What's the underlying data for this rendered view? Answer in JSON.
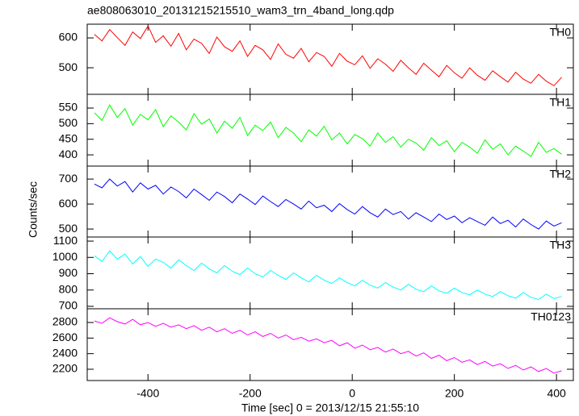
{
  "chart_data": [
    {
      "type": "line",
      "title": "ae808063010_20131215215510_wam3_trn_4band_long.qdp",
      "x": [
        -505,
        -490,
        -475,
        -460,
        -445,
        -430,
        -415,
        -400,
        -385,
        -370,
        -355,
        -340,
        -325,
        -310,
        -295,
        -280,
        -265,
        -250,
        -235,
        -220,
        -205,
        -190,
        -175,
        -160,
        -145,
        -130,
        -115,
        -100,
        -85,
        -70,
        -55,
        -40,
        -25,
        -10,
        5,
        20,
        35,
        50,
        65,
        80,
        95,
        110,
        125,
        140,
        155,
        170,
        185,
        200,
        215,
        230,
        245,
        260,
        275,
        290,
        305,
        320,
        335,
        350,
        365,
        380,
        395,
        410
      ],
      "series": [
        {
          "name": "TH0",
          "color": "#ff0000",
          "values": [
            612,
            590,
            628,
            601,
            575,
            620,
            598,
            640,
            585,
            607,
            572,
            615,
            560,
            596,
            582,
            548,
            603,
            570,
            555,
            590,
            538,
            575,
            560,
            528,
            580,
            545,
            532,
            565,
            520,
            551,
            538,
            505,
            548,
            522,
            510,
            540,
            498,
            530,
            512,
            488,
            525,
            500,
            478,
            515,
            492,
            470,
            508,
            483,
            465,
            500,
            475,
            458,
            490,
            470,
            452,
            485,
            462,
            448,
            478,
            455,
            440,
            468
          ]
        }
      ],
      "xlim": [
        -519,
        433
      ],
      "xticks": [
        -400,
        -200,
        0,
        200,
        400
      ],
      "ylim": [
        411,
        646
      ],
      "yticks": [
        500,
        600
      ]
    },
    {
      "type": "line",
      "x": [
        -505,
        -490,
        -475,
        -460,
        -445,
        -430,
        -415,
        -400,
        -385,
        -370,
        -355,
        -340,
        -325,
        -310,
        -295,
        -280,
        -265,
        -250,
        -235,
        -220,
        -205,
        -190,
        -175,
        -160,
        -145,
        -130,
        -115,
        -100,
        -85,
        -70,
        -55,
        -40,
        -25,
        -10,
        5,
        20,
        35,
        50,
        65,
        80,
        95,
        110,
        125,
        140,
        155,
        170,
        185,
        200,
        215,
        230,
        245,
        260,
        275,
        290,
        305,
        320,
        335,
        350,
        365,
        380,
        395,
        410
      ],
      "series": [
        {
          "name": "TH1",
          "color": "#00ff00",
          "values": [
            535,
            510,
            560,
            520,
            548,
            495,
            530,
            512,
            545,
            490,
            525,
            505,
            480,
            532,
            498,
            515,
            470,
            508,
            485,
            520,
            462,
            495,
            478,
            505,
            455,
            488,
            470,
            442,
            480,
            460,
            492,
            448,
            470,
            435,
            465,
            452,
            428,
            470,
            440,
            458,
            425,
            450,
            438,
            415,
            455,
            430,
            445,
            410,
            440,
            425,
            405,
            448,
            418,
            435,
            400,
            428,
            412,
            395,
            440,
            408,
            420,
            402
          ]
        }
      ],
      "xlim": [
        -519,
        433
      ],
      "xticks": [
        -400,
        -200,
        0,
        200,
        400
      ],
      "ylim": [
        364,
        594
      ],
      "yticks": [
        400,
        450,
        500,
        550
      ]
    },
    {
      "type": "line",
      "ylabel": "Counts/sec",
      "x": [
        -505,
        -490,
        -475,
        -460,
        -445,
        -430,
        -415,
        -400,
        -385,
        -370,
        -355,
        -340,
        -325,
        -310,
        -295,
        -280,
        -265,
        -250,
        -235,
        -220,
        -205,
        -190,
        -175,
        -160,
        -145,
        -130,
        -115,
        -100,
        -85,
        -70,
        -55,
        -40,
        -25,
        -10,
        5,
        20,
        35,
        50,
        65,
        80,
        95,
        110,
        125,
        140,
        155,
        170,
        185,
        200,
        215,
        230,
        245,
        260,
        275,
        290,
        305,
        320,
        335,
        350,
        365,
        380,
        395,
        410
      ],
      "series": [
        {
          "name": "TH2",
          "color": "#0000ff",
          "values": [
            680,
            665,
            700,
            672,
            690,
            648,
            685,
            660,
            675,
            640,
            668,
            650,
            625,
            660,
            638,
            615,
            648,
            630,
            605,
            640,
            620,
            598,
            632,
            610,
            590,
            618,
            600,
            580,
            612,
            585,
            595,
            570,
            602,
            578,
            560,
            590,
            565,
            548,
            580,
            558,
            570,
            540,
            565,
            548,
            530,
            560,
            538,
            552,
            525,
            545,
            530,
            515,
            548,
            522,
            535,
            508,
            540,
            518,
            500,
            532,
            512,
            525
          ]
        }
      ],
      "xlim": [
        -519,
        433
      ],
      "xticks": [
        -400,
        -200,
        0,
        200,
        400
      ],
      "ylim": [
        468,
        752
      ],
      "yticks": [
        500,
        600,
        700
      ]
    },
    {
      "type": "line",
      "x": [
        -505,
        -490,
        -475,
        -460,
        -445,
        -430,
        -415,
        -400,
        -385,
        -370,
        -355,
        -340,
        -325,
        -310,
        -295,
        -280,
        -265,
        -250,
        -235,
        -220,
        -205,
        -190,
        -175,
        -160,
        -145,
        -130,
        -115,
        -100,
        -85,
        -70,
        -55,
        -40,
        -25,
        -10,
        5,
        20,
        35,
        50,
        65,
        80,
        95,
        110,
        125,
        140,
        155,
        170,
        185,
        200,
        215,
        230,
        245,
        260,
        275,
        290,
        305,
        320,
        335,
        350,
        365,
        380,
        395,
        410
      ],
      "series": [
        {
          "name": "TH3",
          "color": "#00ffff",
          "values": [
            1010,
            975,
            1040,
            990,
            1020,
            960,
            1005,
            945,
            990,
            970,
            935,
            985,
            950,
            920,
            965,
            930,
            905,
            950,
            915,
            895,
            935,
            900,
            880,
            920,
            890,
            865,
            905,
            875,
            850,
            890,
            860,
            840,
            875,
            845,
            825,
            860,
            830,
            812,
            845,
            818,
            800,
            835,
            805,
            790,
            825,
            795,
            780,
            812,
            785,
            770,
            800,
            775,
            760,
            790,
            765,
            750,
            785,
            755,
            742,
            775,
            748,
            760
          ]
        }
      ],
      "xlim": [
        -519,
        433
      ],
      "xticks": [
        -400,
        -200,
        0,
        200,
        400
      ],
      "ylim": [
        685,
        1125
      ],
      "yticks": [
        700,
        800,
        900,
        1000,
        1100
      ]
    },
    {
      "type": "line",
      "xlabel": "Time [sec] 0 = 2013/12/15 21:55:10",
      "x": [
        -505,
        -490,
        -475,
        -460,
        -445,
        -430,
        -415,
        -400,
        -385,
        -370,
        -355,
        -340,
        -325,
        -310,
        -295,
        -280,
        -265,
        -250,
        -235,
        -220,
        -205,
        -190,
        -175,
        -160,
        -145,
        -130,
        -115,
        -100,
        -85,
        -70,
        -55,
        -40,
        -25,
        -10,
        5,
        20,
        35,
        50,
        65,
        80,
        95,
        110,
        125,
        140,
        155,
        170,
        185,
        200,
        215,
        230,
        245,
        260,
        275,
        290,
        305,
        320,
        335,
        350,
        365,
        380,
        395,
        410
      ],
      "series": [
        {
          "name": "TH0123",
          "color": "#ff00ff",
          "values": [
            2820,
            2790,
            2860,
            2810,
            2780,
            2840,
            2770,
            2800,
            2750,
            2790,
            2740,
            2770,
            2720,
            2760,
            2700,
            2740,
            2680,
            2720,
            2660,
            2700,
            2640,
            2680,
            2620,
            2660,
            2600,
            2640,
            2580,
            2610,
            2560,
            2590,
            2540,
            2570,
            2500,
            2540,
            2470,
            2510,
            2450,
            2480,
            2420,
            2460,
            2400,
            2430,
            2370,
            2410,
            2340,
            2380,
            2310,
            2350,
            2290,
            2320,
            2260,
            2300,
            2240,
            2270,
            2210,
            2250,
            2190,
            2230,
            2170,
            2210,
            2150,
            2180
          ]
        }
      ],
      "xlim": [
        -519,
        433
      ],
      "xticks": [
        -400,
        -200,
        0,
        200,
        400
      ],
      "ylim": [
        2055,
        2976
      ],
      "yticks": [
        2200,
        2400,
        2600,
        2800
      ]
    }
  ]
}
